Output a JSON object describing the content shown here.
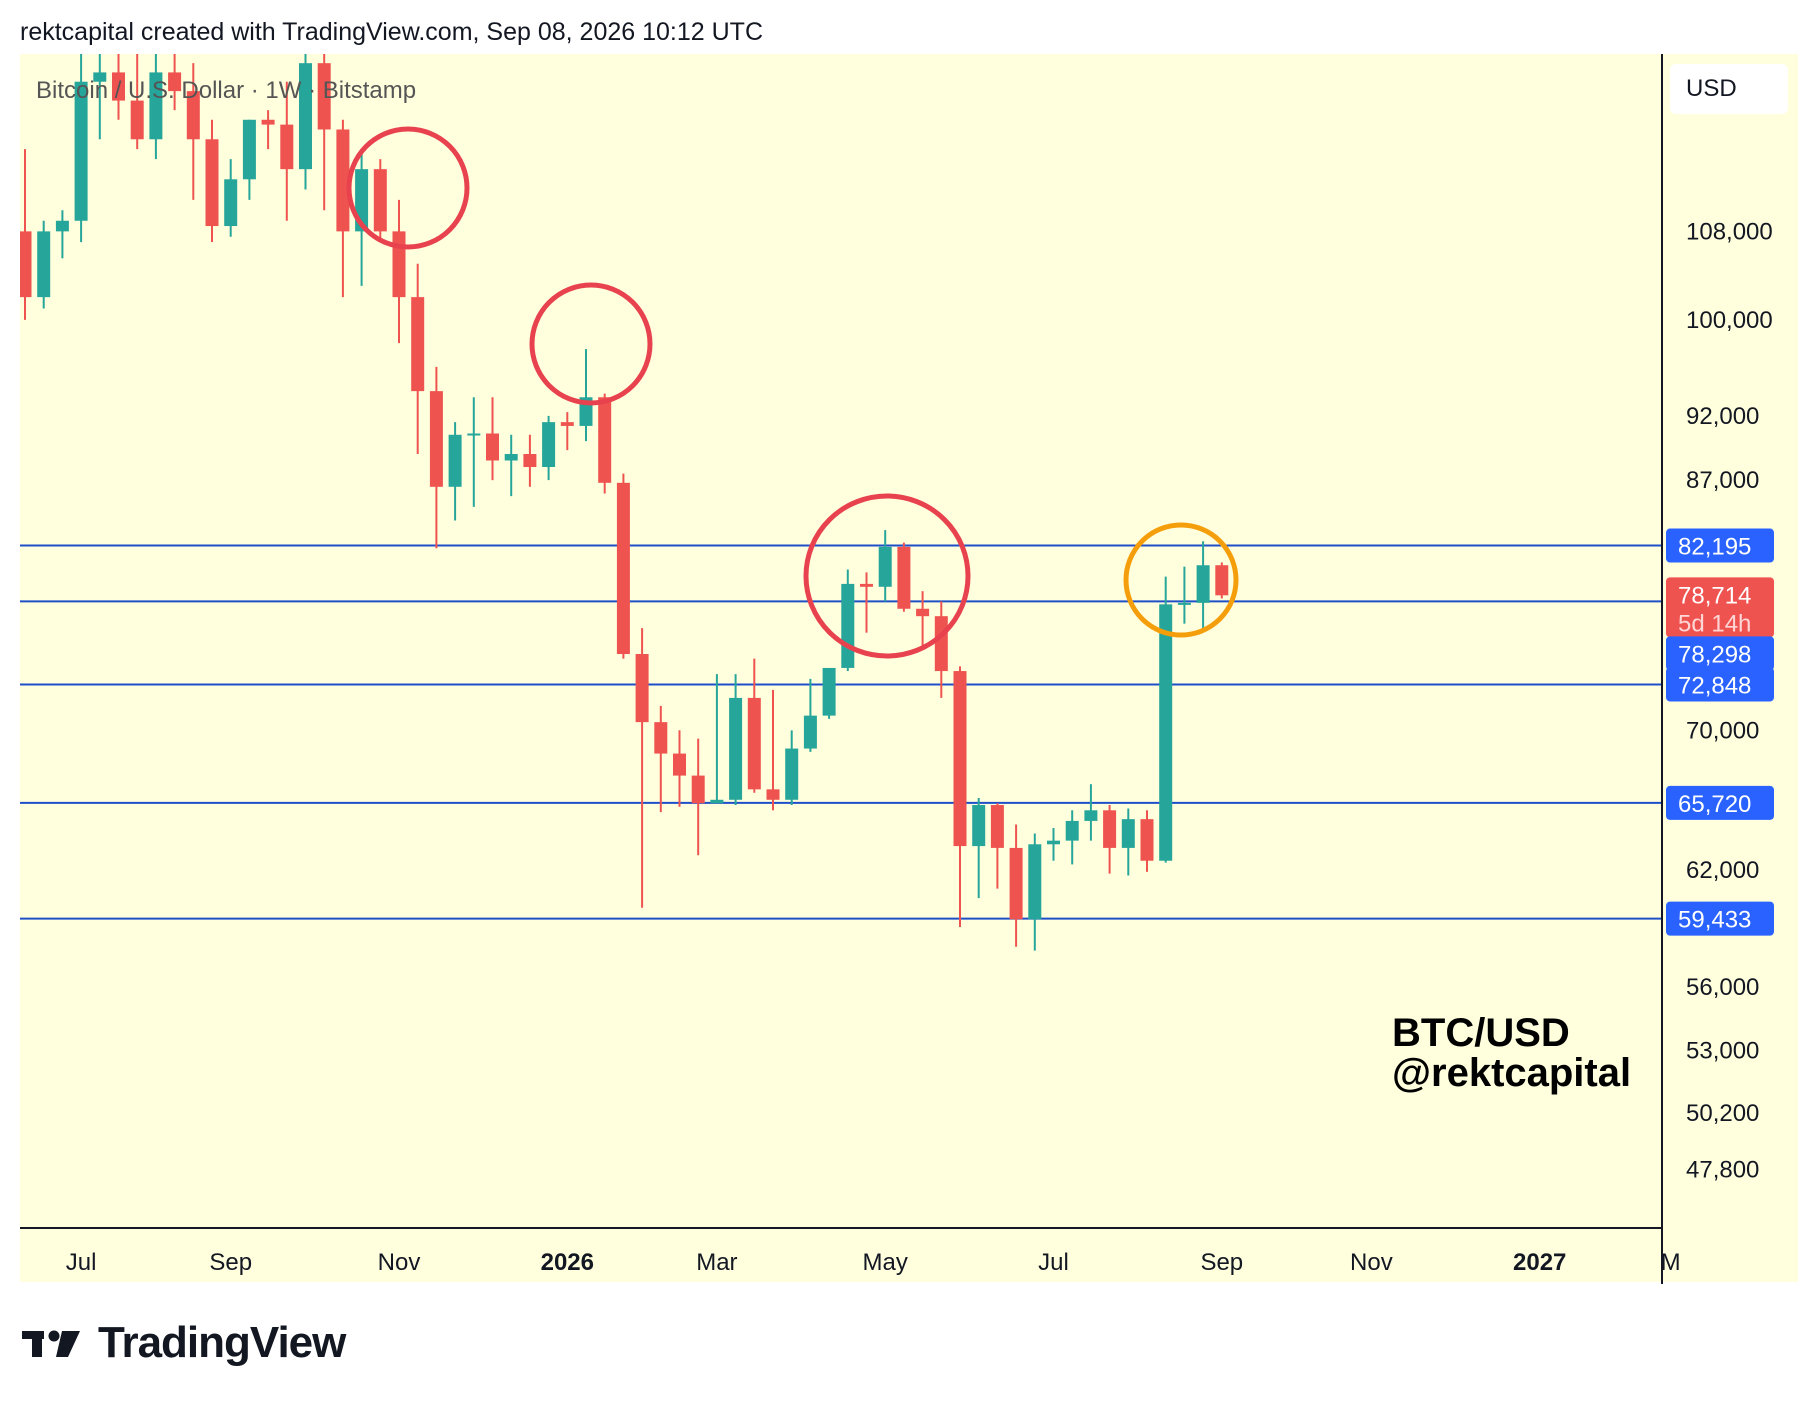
{
  "header": {
    "attribution": "rektcapital created with TradingView.com, Sep 08, 2026 10:12 UTC"
  },
  "symbol_label": "Bitcoin / U.S. Dollar · 1W · Bitstamp",
  "currency_button": "USD",
  "watermark": {
    "line1": "BTC/USD",
    "line2": "@rektcapital"
  },
  "footer": {
    "brand": "TradingView"
  },
  "colors": {
    "background": "#ffffde",
    "up": "#26a69a",
    "down": "#ef5350",
    "level_line": "#1e4fc9",
    "level_label": "#2962ff",
    "circle_red": "#e8424e",
    "circle_orange": "#f59e0b"
  },
  "chart_data": {
    "type": "candlestick",
    "title": "Bitcoin / U.S. Dollar · 1W · Bitstamp",
    "timeframe": "1W",
    "y_scale": "log",
    "ylim": [
      45500,
      126000
    ],
    "y_ticks": [
      {
        "value": 108000,
        "label": "108,000"
      },
      {
        "value": 100000,
        "label": "100,000"
      },
      {
        "value": 92000,
        "label": "92,000"
      },
      {
        "value": 87000,
        "label": "87,000"
      },
      {
        "value": 70000,
        "label": "70,000"
      },
      {
        "value": 62000,
        "label": "62,000"
      },
      {
        "value": 56000,
        "label": "56,000"
      },
      {
        "value": 53000,
        "label": "53,000"
      },
      {
        "value": 50200,
        "label": "50,200"
      },
      {
        "value": 47800,
        "label": "47,800"
      }
    ],
    "x_ticks": [
      {
        "week": 3,
        "label": "Jul",
        "bold": false
      },
      {
        "week": 11,
        "label": "Sep",
        "bold": false
      },
      {
        "week": 20,
        "label": "Nov",
        "bold": false
      },
      {
        "week": 29,
        "label": "2026",
        "bold": true
      },
      {
        "week": 37,
        "label": "Mar",
        "bold": false
      },
      {
        "week": 46,
        "label": "May",
        "bold": false
      },
      {
        "week": 55,
        "label": "Jul",
        "bold": false
      },
      {
        "week": 64,
        "label": "Sep",
        "bold": false
      },
      {
        "week": 72,
        "label": "Nov",
        "bold": false
      },
      {
        "week": 81,
        "label": "2027",
        "bold": true
      },
      {
        "week": 88,
        "label": "M",
        "bold": false
      }
    ],
    "levels": [
      {
        "value": 82195,
        "label": "82,195"
      },
      {
        "value": 78298,
        "label": "78,298"
      },
      {
        "value": 72848,
        "label": "72,848"
      },
      {
        "value": 65720,
        "label": "65,720"
      },
      {
        "value": 59433,
        "label": "59,433"
      }
    ],
    "current_price": {
      "value": 78714,
      "label": "78,714",
      "countdown": "5d 14h"
    },
    "candles": [
      {
        "o": 108000,
        "h": 116000,
        "l": 100000,
        "c": 102000
      },
      {
        "o": 102000,
        "h": 109000,
        "l": 101000,
        "c": 108000
      },
      {
        "o": 108000,
        "h": 110000,
        "l": 105500,
        "c": 109000
      },
      {
        "o": 109000,
        "h": 126000,
        "l": 107000,
        "c": 123000
      },
      {
        "o": 123000,
        "h": 126000,
        "l": 117000,
        "c": 124000
      },
      {
        "o": 124000,
        "h": 126000,
        "l": 119000,
        "c": 121000
      },
      {
        "o": 121000,
        "h": 126000,
        "l": 116000,
        "c": 117000
      },
      {
        "o": 117000,
        "h": 126000,
        "l": 115000,
        "c": 124000
      },
      {
        "o": 124000,
        "h": 126000,
        "l": 120000,
        "c": 122000
      },
      {
        "o": 122000,
        "h": 125000,
        "l": 111000,
        "c": 117000
      },
      {
        "o": 117000,
        "h": 119000,
        "l": 107000,
        "c": 108500
      },
      {
        "o": 108500,
        "h": 115000,
        "l": 107500,
        "c": 113000
      },
      {
        "o": 113000,
        "h": 119000,
        "l": 111000,
        "c": 119000
      },
      {
        "o": 119000,
        "h": 120000,
        "l": 116000,
        "c": 118500
      },
      {
        "o": 118500,
        "h": 123000,
        "l": 109000,
        "c": 114000
      },
      {
        "o": 114000,
        "h": 126000,
        "l": 112000,
        "c": 125000
      },
      {
        "o": 125000,
        "h": 126000,
        "l": 110000,
        "c": 118000
      },
      {
        "o": 118000,
        "h": 119000,
        "l": 102000,
        "c": 108000
      },
      {
        "o": 108000,
        "h": 116000,
        "l": 103000,
        "c": 114000
      },
      {
        "o": 114000,
        "h": 115000,
        "l": 107000,
        "c": 108000
      },
      {
        "o": 108000,
        "h": 111000,
        "l": 98000,
        "c": 102000
      },
      {
        "o": 102000,
        "h": 105000,
        "l": 89000,
        "c": 94000
      },
      {
        "o": 94000,
        "h": 96000,
        "l": 82000,
        "c": 86500
      },
      {
        "o": 86500,
        "h": 91500,
        "l": 84000,
        "c": 90500
      },
      {
        "o": 90500,
        "h": 93500,
        "l": 85000,
        "c": 90600
      },
      {
        "o": 90600,
        "h": 93500,
        "l": 87000,
        "c": 88500
      },
      {
        "o": 88500,
        "h": 90500,
        "l": 85800,
        "c": 89000
      },
      {
        "o": 89000,
        "h": 90500,
        "l": 86500,
        "c": 88000
      },
      {
        "o": 88000,
        "h": 92000,
        "l": 87000,
        "c": 91500
      },
      {
        "o": 91500,
        "h": 92300,
        "l": 89300,
        "c": 91200
      },
      {
        "o": 91200,
        "h": 97500,
        "l": 90000,
        "c": 93500
      },
      {
        "o": 93500,
        "h": 93800,
        "l": 86000,
        "c": 86800
      },
      {
        "o": 86800,
        "h": 87500,
        "l": 74500,
        "c": 74800
      },
      {
        "o": 74800,
        "h": 76500,
        "l": 60000,
        "c": 70500
      },
      {
        "o": 70500,
        "h": 71500,
        "l": 65200,
        "c": 68600
      },
      {
        "o": 68600,
        "h": 70000,
        "l": 65500,
        "c": 67300
      },
      {
        "o": 67300,
        "h": 69500,
        "l": 62800,
        "c": 65700
      },
      {
        "o": 65700,
        "h": 73500,
        "l": 65700,
        "c": 65900
      },
      {
        "o": 65900,
        "h": 73500,
        "l": 65600,
        "c": 72000
      },
      {
        "o": 72000,
        "h": 74500,
        "l": 66300,
        "c": 66500
      },
      {
        "o": 66500,
        "h": 72500,
        "l": 65300,
        "c": 65900
      },
      {
        "o": 65900,
        "h": 70000,
        "l": 65600,
        "c": 68900
      },
      {
        "o": 68900,
        "h": 73200,
        "l": 68700,
        "c": 70900
      },
      {
        "o": 70900,
        "h": 73800,
        "l": 70700,
        "c": 73900
      },
      {
        "o": 73900,
        "h": 80500,
        "l": 73700,
        "c": 79500
      },
      {
        "o": 79500,
        "h": 80300,
        "l": 76200,
        "c": 79300
      },
      {
        "o": 79300,
        "h": 83300,
        "l": 78300,
        "c": 82100
      },
      {
        "o": 82100,
        "h": 82400,
        "l": 77600,
        "c": 77800
      },
      {
        "o": 77800,
        "h": 79000,
        "l": 75300,
        "c": 77300
      },
      {
        "o": 77300,
        "h": 78300,
        "l": 72000,
        "c": 73700
      },
      {
        "o": 73700,
        "h": 74000,
        "l": 59000,
        "c": 63300
      },
      {
        "o": 63300,
        "h": 66000,
        "l": 60500,
        "c": 65600
      },
      {
        "o": 65600,
        "h": 65700,
        "l": 61000,
        "c": 63200
      },
      {
        "o": 63200,
        "h": 64500,
        "l": 58000,
        "c": 59400
      },
      {
        "o": 59400,
        "h": 64000,
        "l": 57800,
        "c": 63400
      },
      {
        "o": 63400,
        "h": 64300,
        "l": 62500,
        "c": 63600
      },
      {
        "o": 63600,
        "h": 65300,
        "l": 62300,
        "c": 64700
      },
      {
        "o": 64700,
        "h": 66800,
        "l": 63600,
        "c": 65300
      },
      {
        "o": 65300,
        "h": 65600,
        "l": 61800,
        "c": 63200
      },
      {
        "o": 63200,
        "h": 65400,
        "l": 61700,
        "c": 64800
      },
      {
        "o": 64800,
        "h": 65300,
        "l": 61900,
        "c": 62500
      },
      {
        "o": 62500,
        "h": 80000,
        "l": 62400,
        "c": 78100
      },
      {
        "o": 78100,
        "h": 80700,
        "l": 76800,
        "c": 78200
      },
      {
        "o": 78200,
        "h": 82500,
        "l": 76500,
        "c": 80800
      },
      {
        "o": 80800,
        "h": 81000,
        "l": 78500,
        "c": 78714
      }
    ]
  }
}
